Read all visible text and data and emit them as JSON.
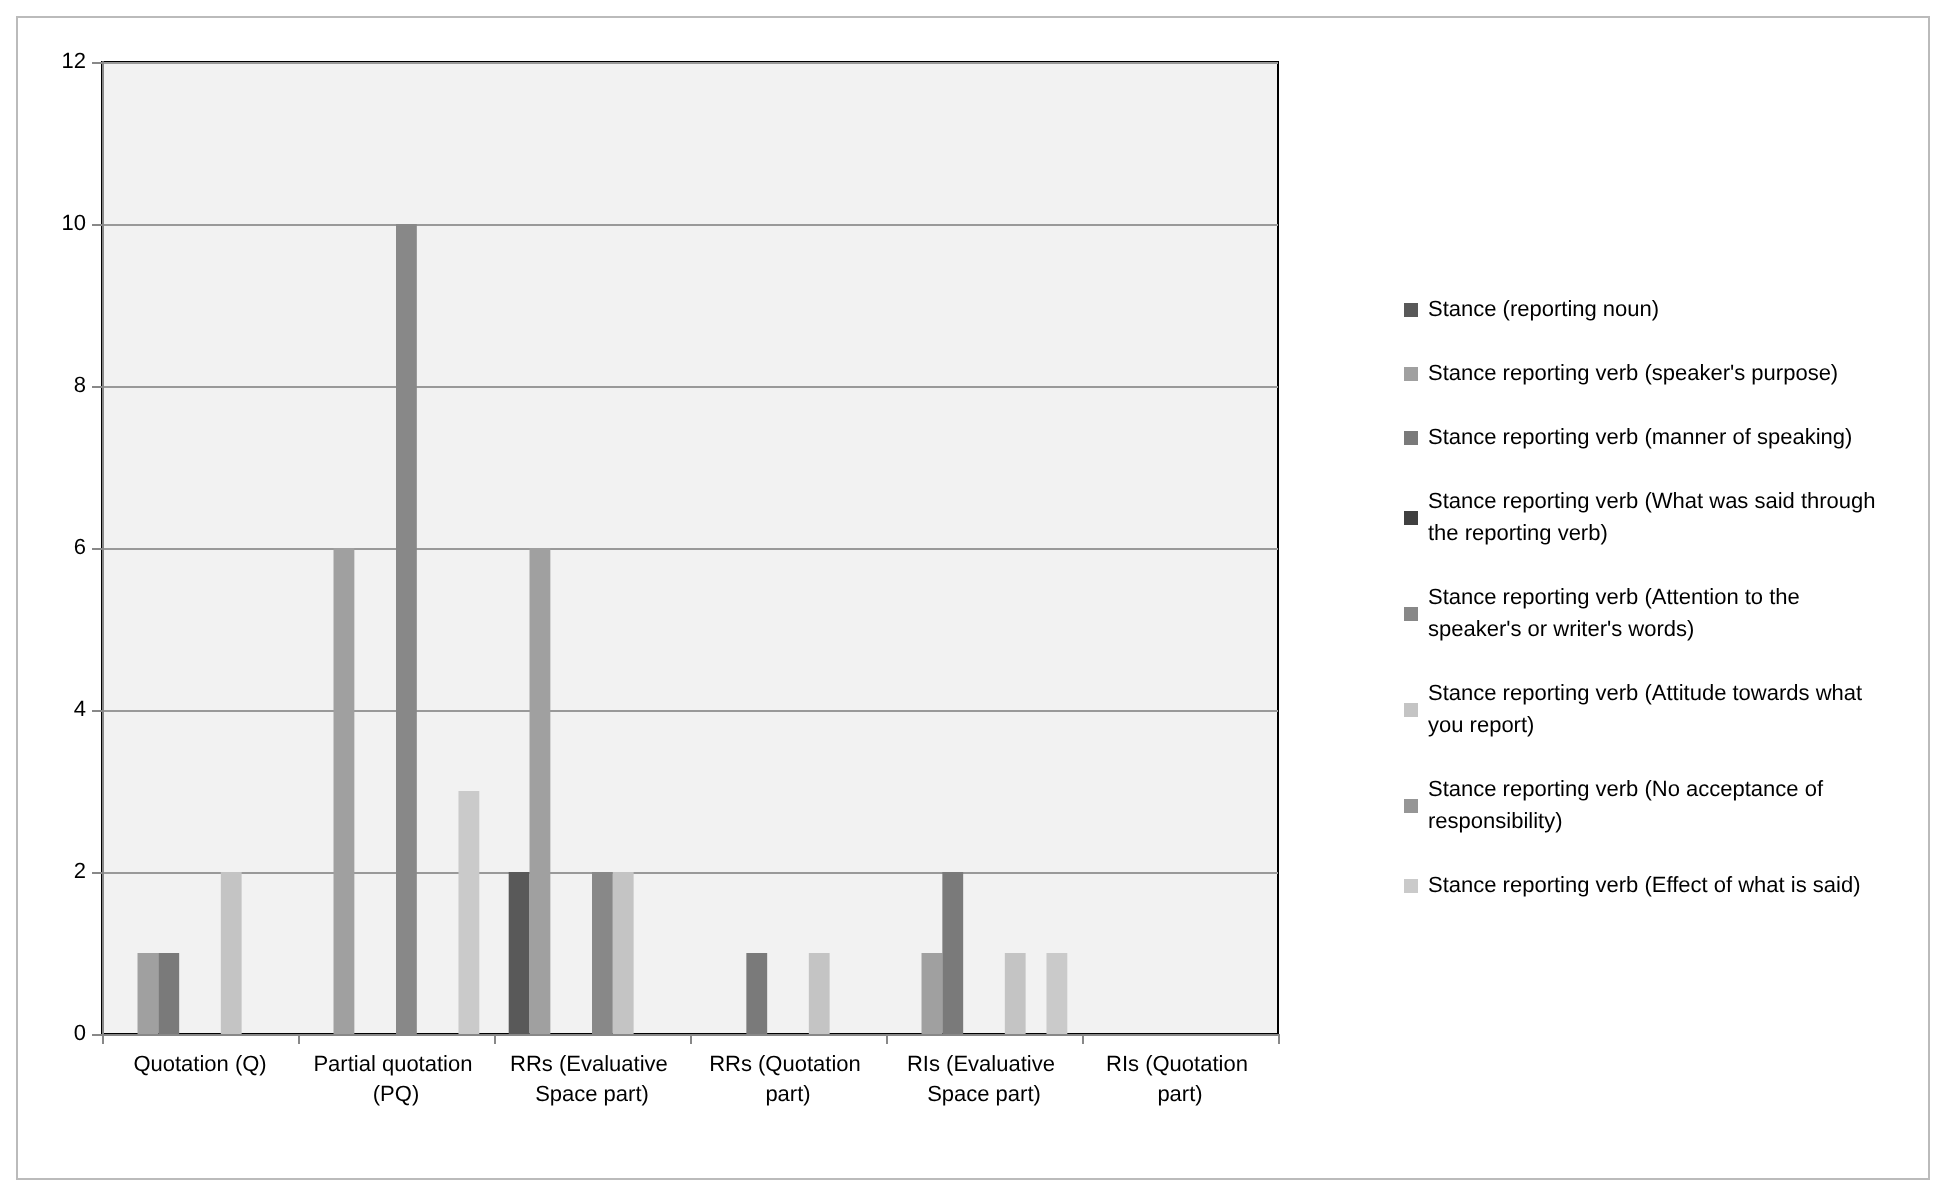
{
  "chart_data": {
    "type": "bar",
    "categories": [
      "Quotation (Q)",
      "Partial quotation (PQ)",
      "RRs (Evaluative Space part)",
      "RRs (Quotation part)",
      "RIs (Evaluative Space part)",
      "RIs (Quotation part)"
    ],
    "series": [
      {
        "name": "Stance (reporting noun)",
        "color": "#595959",
        "values": [
          0,
          0,
          2,
          0,
          0,
          0
        ]
      },
      {
        "name": "Stance reporting verb (speaker's purpose)",
        "color": "#a0a0a0",
        "values": [
          1,
          6,
          6,
          0,
          1,
          0
        ]
      },
      {
        "name": "Stance reporting verb (manner of speaking)",
        "color": "#7a7a7a",
        "values": [
          1,
          0,
          0,
          1,
          2,
          0
        ]
      },
      {
        "name": "Stance reporting verb (What was said through the reporting verb)",
        "color": "#404040",
        "values": [
          0,
          0,
          0,
          0,
          0,
          0
        ]
      },
      {
        "name": "Stance reporting verb (Attention to the speaker's or writer's words)",
        "color": "#888888",
        "values": [
          0,
          10,
          2,
          0,
          0,
          0
        ]
      },
      {
        "name": "Stance reporting verb (Attitude towards what you report)",
        "color": "#c4c4c4",
        "values": [
          2,
          0,
          2,
          1,
          1,
          0
        ]
      },
      {
        "name": "Stance reporting verb (No acceptance of responsibility)",
        "color": "#969696",
        "values": [
          0,
          0,
          0,
          0,
          0,
          0
        ]
      },
      {
        "name": "Stance reporting verb (Effect of what is said)",
        "color": "#cacaca",
        "values": [
          0,
          3,
          0,
          0,
          1,
          0
        ]
      }
    ],
    "ylim": [
      0,
      12
    ],
    "yticks": [
      0,
      2,
      4,
      6,
      8,
      10,
      12
    ],
    "grid": "y",
    "legend": "right"
  }
}
